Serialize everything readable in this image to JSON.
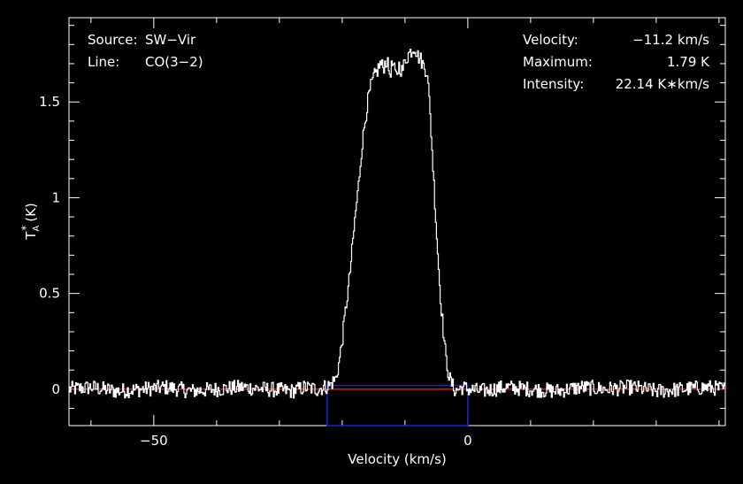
{
  "chart_data": {
    "type": "line",
    "title": "",
    "xlabel": "Velocity (km/s)",
    "ylabel": "T",
    "ylabel_sub": "A",
    "ylabel_sup": "*",
    "ylabel_unit": "(K)",
    "xlim": [
      -63.5,
      41
    ],
    "ylim": [
      -0.19,
      1.94
    ],
    "x_ticks": [
      {
        "value": -50,
        "label": "−50"
      },
      {
        "value": 0,
        "label": "0"
      }
    ],
    "y_ticks": [
      {
        "value": 0,
        "label": "0"
      },
      {
        "value": 0.5,
        "label": "0.5"
      },
      {
        "value": 1,
        "label": "1"
      },
      {
        "value": 1.5,
        "label": "1.5"
      }
    ],
    "grid": false,
    "annotations_left": [
      {
        "key": "Source:",
        "value": "SW−Vir"
      },
      {
        "key": "Line:",
        "value": "CO(3−2)"
      }
    ],
    "annotations_right": [
      {
        "key": "Velocity:",
        "value": "−11.2 km/s"
      },
      {
        "key": "Maximum:",
        "value": "1.79 K"
      },
      {
        "key": "Intensity:",
        "value": "22.14 K∗km/s"
      }
    ],
    "baseline": {
      "value": 0.0,
      "color": "#ff2020"
    },
    "fit_window": {
      "x_start": -22.4,
      "x_end": 0.0,
      "height": 0.02,
      "color": "#2020d0"
    },
    "series": [
      {
        "color": "#ffffff",
        "x": [
          -63.5,
          -60,
          -56,
          -52,
          -48,
          -44,
          -40,
          -36,
          -32,
          -28,
          -26,
          -24,
          -23,
          -22,
          -21,
          -20.5,
          -20,
          -19.5,
          -19,
          -18.5,
          -18,
          -17.5,
          -17,
          -16.5,
          -16,
          -15.5,
          -15,
          -14.5,
          -14,
          -13.5,
          -13,
          -12.5,
          -12,
          -11.5,
          -11,
          -10.5,
          -10,
          -9.5,
          -9,
          -8.5,
          -8,
          -7.5,
          -7,
          -6.5,
          -6,
          -5.5,
          -5,
          -4.5,
          -4,
          -3.5,
          -3,
          -2.5,
          -2,
          -1,
          0,
          2,
          6,
          10,
          14,
          18,
          22,
          26,
          30,
          34,
          38,
          41
        ],
        "y": [
          0.0,
          0.01,
          -0.01,
          0.0,
          0.01,
          -0.01,
          0.0,
          0.01,
          0.0,
          -0.01,
          0.01,
          0.0,
          0.01,
          0.02,
          0.06,
          0.15,
          0.27,
          0.42,
          0.55,
          0.72,
          0.9,
          1.05,
          1.24,
          1.38,
          1.5,
          1.58,
          1.63,
          1.66,
          1.7,
          1.68,
          1.72,
          1.65,
          1.7,
          1.63,
          1.69,
          1.66,
          1.72,
          1.75,
          1.77,
          1.79,
          1.74,
          1.72,
          1.68,
          1.66,
          1.4,
          1.1,
          0.8,
          0.52,
          0.32,
          0.15,
          0.06,
          0.02,
          -0.01,
          0.01,
          0.0,
          -0.01,
          0.01,
          0.0,
          -0.01,
          0.01,
          0.0,
          0.01,
          -0.01,
          0.0,
          0.01,
          0.0
        ]
      }
    ]
  }
}
